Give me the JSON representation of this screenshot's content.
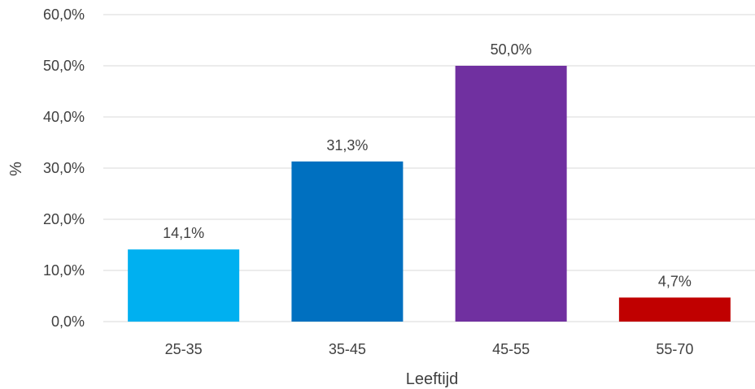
{
  "chart_data": {
    "type": "bar",
    "title": "",
    "xlabel": "Leeftijd",
    "ylabel": "%",
    "categories": [
      "25-35",
      "35-45",
      "45-55",
      "55-70"
    ],
    "values": [
      14.1,
      31.3,
      50.0,
      4.7
    ],
    "data_labels": [
      "14,1%",
      "31,3%",
      "50,0%",
      "4,7%"
    ],
    "bar_colors": [
      "#00b0f0",
      "#0070c0",
      "#7030a0",
      "#c00000"
    ],
    "ylim": [
      0,
      60
    ],
    "yticks": [
      0,
      10,
      20,
      30,
      40,
      50,
      60
    ],
    "ytick_labels": [
      "0,0%",
      "10,0%",
      "20,0%",
      "30,0%",
      "40,0%",
      "50,0%",
      "60,0%"
    ],
    "grid": true,
    "legend": "none"
  }
}
